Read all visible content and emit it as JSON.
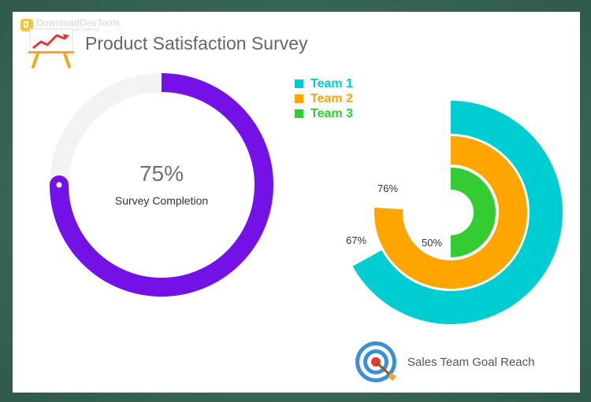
{
  "watermark": {
    "text": "DownloadDevTools.",
    "subtext": "Developer Tools Software Collection"
  },
  "header": {
    "title": "Product Satisfaction Survey",
    "icon": "presentation-chart-icon"
  },
  "colors": {
    "completion": "#7311e6",
    "track": "#f3f3f3",
    "team1": "#00cdd1",
    "team2": "#ffa500",
    "team3": "#33cc33"
  },
  "chart_data": [
    {
      "type": "pie",
      "subtype": "progress-ring",
      "value": 75,
      "max": 100,
      "center_text": "75%",
      "center_label": "Survey Completion"
    },
    {
      "type": "pie",
      "subtype": "radial-bar",
      "series": [
        {
          "name": "Team 1",
          "value": 67,
          "label": "67%",
          "color": "#00cdd1"
        },
        {
          "name": "Team 2",
          "value": 76,
          "label": "76%",
          "color": "#ffa500"
        },
        {
          "name": "Team 3",
          "value": 50,
          "label": "50%",
          "color": "#33cc33"
        }
      ],
      "max": 100,
      "legend_position": "top-left"
    }
  ],
  "footer": {
    "label": "Sales Team Goal Reach",
    "icon": "target-icon"
  }
}
